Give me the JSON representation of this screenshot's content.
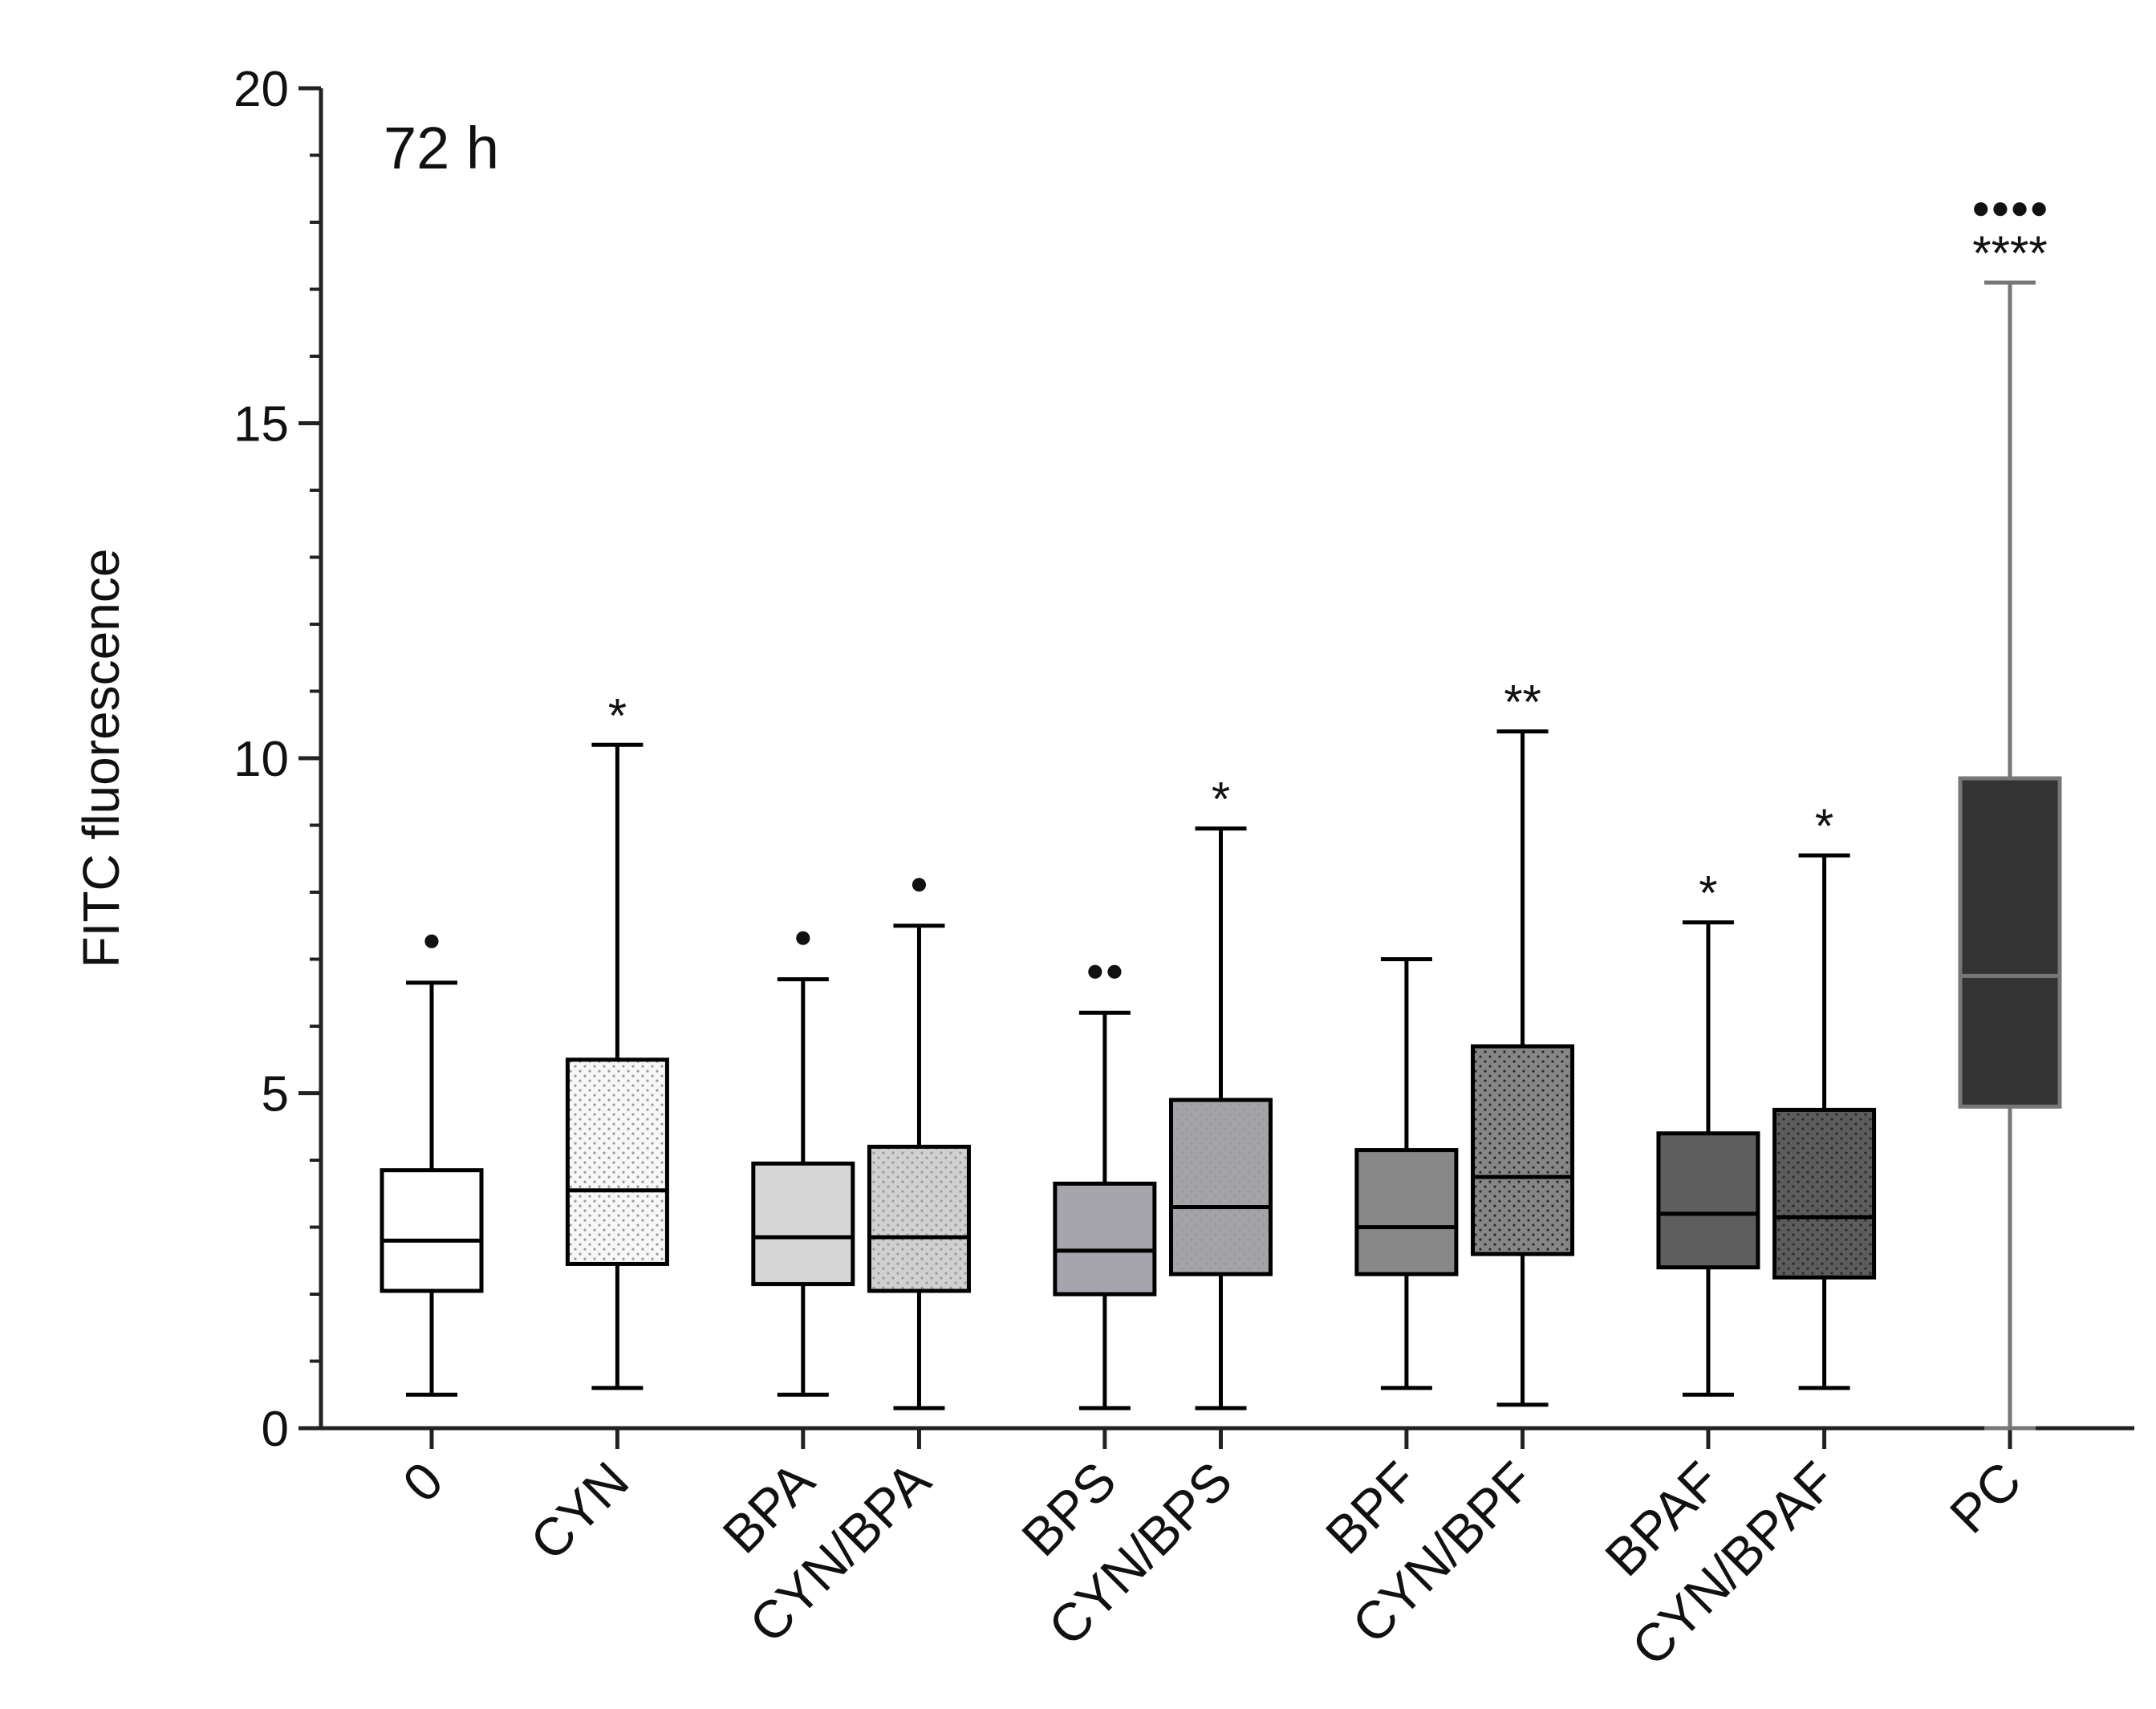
{
  "chart_data": {
    "type": "boxplot",
    "title": "72 h",
    "xlabel": "",
    "ylabel": "FITC fluorescence",
    "ylim": [
      0,
      20
    ],
    "yticks": [
      0,
      5,
      10,
      15,
      20
    ],
    "ytick_labels": [
      "0",
      "5",
      "10",
      "15",
      "20"
    ],
    "minor_tick_step": 1,
    "categories": [
      "0",
      "CYN",
      "BPA",
      "CYN/BPA",
      "BPS",
      "CYN/BPS",
      "BPF",
      "CYN/BPF",
      "BPAF",
      "CYN/BPAF",
      "PC"
    ],
    "groups": [
      [
        0
      ],
      [
        1
      ],
      [
        2,
        3
      ],
      [
        4,
        5
      ],
      [
        6,
        7
      ],
      [
        8,
        9
      ],
      [
        10
      ]
    ],
    "series": [
      {
        "name": "0",
        "min": 0.5,
        "q1": 2.05,
        "median": 2.8,
        "q3": 3.85,
        "max": 6.65,
        "fill": "#ffffff",
        "stroke": "#000000",
        "pattern": "none",
        "annotation": "●"
      },
      {
        "name": "CYN",
        "min": 0.6,
        "q1": 2.45,
        "median": 3.55,
        "q3": 5.5,
        "max": 10.2,
        "fill": "#f7f7f7",
        "stroke": "#000000",
        "pattern": "dots",
        "annotation": "*"
      },
      {
        "name": "BPA",
        "min": 0.5,
        "q1": 2.15,
        "median": 2.85,
        "q3": 3.95,
        "max": 6.7,
        "fill": "#d6d6d6",
        "stroke": "#000000",
        "pattern": "none",
        "annotation": "●"
      },
      {
        "name": "CYN/BPA",
        "min": 0.3,
        "q1": 2.05,
        "median": 2.85,
        "q3": 4.2,
        "max": 7.5,
        "fill": "#d0d0d0",
        "stroke": "#000000",
        "pattern": "dots",
        "annotation": "●"
      },
      {
        "name": "BPS",
        "min": 0.3,
        "q1": 2.0,
        "median": 2.65,
        "q3": 3.65,
        "max": 6.2,
        "fill": "#a5a5ab",
        "stroke": "#000000",
        "pattern": "none",
        "annotation": "●●"
      },
      {
        "name": "CYN/BPS",
        "min": 0.3,
        "q1": 2.3,
        "median": 3.3,
        "q3": 4.9,
        "max": 8.95,
        "fill": "#a3a3a8",
        "stroke": "#000000",
        "pattern": "dots",
        "annotation": "*"
      },
      {
        "name": "BPF",
        "min": 0.6,
        "q1": 2.3,
        "median": 3.0,
        "q3": 4.15,
        "max": 7.0,
        "fill": "#888888",
        "stroke": "#000000",
        "pattern": "none",
        "annotation": ""
      },
      {
        "name": "CYN/BPF",
        "min": 0.35,
        "q1": 2.6,
        "median": 3.75,
        "q3": 5.7,
        "max": 10.4,
        "fill": "#868686",
        "stroke": "#000000",
        "pattern": "dots",
        "annotation": "**"
      },
      {
        "name": "BPAF",
        "min": 0.5,
        "q1": 2.4,
        "median": 3.2,
        "q3": 4.4,
        "max": 7.55,
        "fill": "#5e5e5e",
        "stroke": "#000000",
        "pattern": "none",
        "annotation": "*"
      },
      {
        "name": "CYN/BPAF",
        "min": 0.6,
        "q1": 2.25,
        "median": 3.15,
        "q3": 4.75,
        "max": 8.55,
        "fill": "#5c5c5c",
        "stroke": "#000000",
        "pattern": "dots",
        "annotation": "*"
      },
      {
        "name": "PC",
        "min": 0.0,
        "q1": 4.8,
        "median": 6.75,
        "q3": 9.7,
        "max": 17.1,
        "fill": "#333333",
        "stroke": "#777777",
        "pattern": "none",
        "annotation": "****",
        "annotation2": "●●●●"
      }
    ]
  }
}
